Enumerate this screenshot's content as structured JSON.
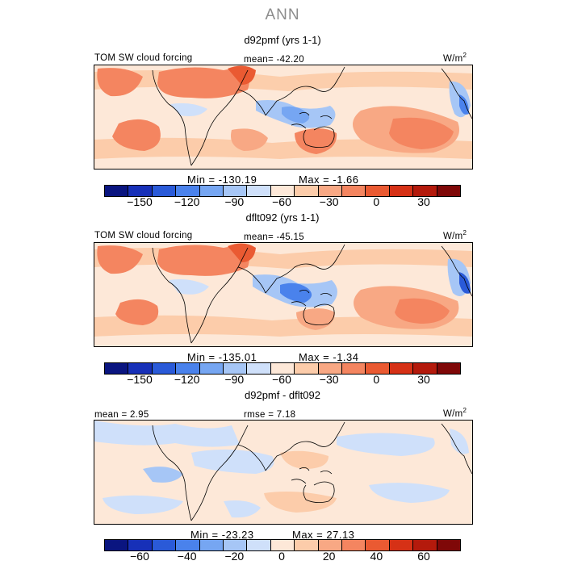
{
  "chart_data": {
    "type": "heatmap",
    "title": "ANN",
    "panels": [
      {
        "title": "d92pmf (yrs 1-1)",
        "left_label": "TOM SW cloud forcing",
        "center_label": "mean= -42.20",
        "units": "W/m",
        "units_exp": "2",
        "min_label": "Min = -130.19",
        "max_label": "Max =  -1.66",
        "colorbar_levels": [
          -165,
          -150,
          -135,
          -120,
          -105,
          -90,
          -75,
          -60,
          -45,
          -30,
          -15,
          0,
          15,
          30,
          45
        ],
        "colorbar_ticks": [
          "-150",
          "-120",
          "-90",
          "-60",
          "-30",
          "0",
          "30"
        ]
      },
      {
        "title": "dflt092 (yrs 1-1)",
        "left_label": "TOM SW cloud forcing",
        "center_label": "mean= -45.15",
        "units": "W/m",
        "units_exp": "2",
        "min_label": "Min = -135.01",
        "max_label": "Max =  -1.34",
        "colorbar_levels": [
          -165,
          -150,
          -135,
          -120,
          -105,
          -90,
          -75,
          -60,
          -45,
          -30,
          -15,
          0,
          15,
          30,
          45
        ],
        "colorbar_ticks": [
          "-150",
          "-120",
          "-90",
          "-60",
          "-30",
          "0",
          "30"
        ]
      },
      {
        "title": "d92pmf - dflt092",
        "left_label": "mean =   2.95",
        "center_label": "rmse =   7.18",
        "units": "W/m",
        "units_exp": "2",
        "min_label": "Min = -23.23",
        "max_label": "Max =  27.13",
        "colorbar_levels": [
          -70,
          -60,
          -50,
          -40,
          -30,
          -20,
          -10,
          0,
          10,
          20,
          30,
          40,
          50,
          60,
          70
        ],
        "colorbar_ticks": [
          "-60",
          "-40",
          "-20",
          "0",
          "20",
          "40",
          "60"
        ]
      }
    ]
  },
  "colors": {
    "colorbar": [
      "#0a1580",
      "#1730b8",
      "#2a5ad8",
      "#4a82ec",
      "#76a6f2",
      "#a6c6f6",
      "#cfe0fa",
      "#fde8d8",
      "#fcccaa",
      "#f8a884",
      "#f48560",
      "#ea5a32",
      "#d63116",
      "#b41a0c",
      "#7f0808"
    ]
  }
}
